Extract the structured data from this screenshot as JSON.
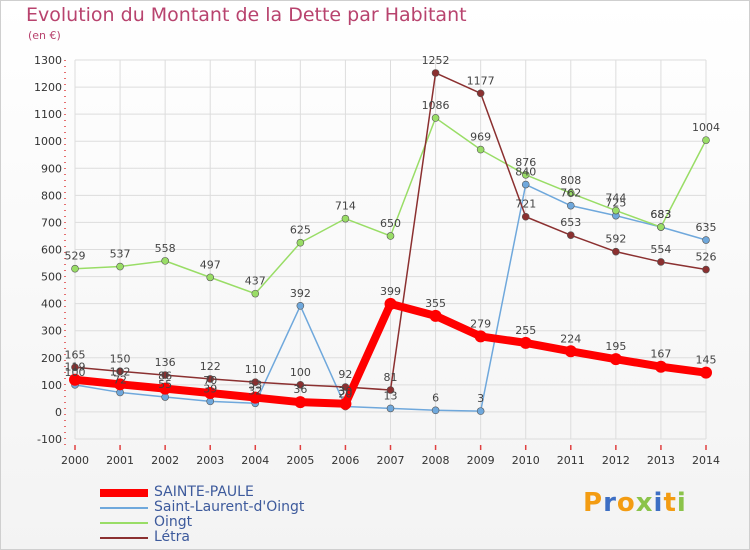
{
  "header": {
    "title": "Evolution du Montant de la Dette par Habitant",
    "subtitle": "(en €)"
  },
  "logo": {
    "text": "Proxiti"
  },
  "chart_data": {
    "type": "line",
    "title": "Evolution du Montant de la Dette par Habitant",
    "ylabel": "(en €)",
    "xlabel": "",
    "x": [
      "2000",
      "2001",
      "2002",
      "2003",
      "2004",
      "2005",
      "2006",
      "2007",
      "2008",
      "2009",
      "2010",
      "2011",
      "2012",
      "2013",
      "2014"
    ],
    "ylim": [
      -100,
      1300
    ],
    "yticks": [
      -100,
      0,
      100,
      200,
      300,
      400,
      500,
      600,
      700,
      800,
      900,
      1000,
      1100,
      1200,
      1300
    ],
    "grid": true,
    "legend": "bottom-left",
    "series": [
      {
        "name": "SAINTE-PAULE",
        "color": "#ff0000",
        "values": [
          119,
          102,
          86,
          70,
          53,
          36,
          30,
          399,
          355,
          279,
          255,
          224,
          195,
          167,
          145
        ],
        "labels": [
          "119",
          "102",
          "86",
          "70",
          "53",
          "36",
          "30",
          "399",
          "355",
          "279",
          "255",
          "224",
          "195",
          "167",
          "145"
        ]
      },
      {
        "name": "Saint-Laurent-d'Oingt",
        "color": "#6fa8dc",
        "values": [
          100,
          72,
          55,
          39,
          32,
          392,
          20,
          13,
          6,
          3,
          840,
          762,
          725,
          683,
          635
        ],
        "labels": [
          "100",
          "72",
          "55",
          "39",
          "32",
          "392",
          "20",
          "13",
          "6",
          "3",
          "840",
          "762",
          "725",
          "683",
          "635"
        ]
      },
      {
        "name": "Oingt",
        "color": "#99dd66",
        "values": [
          529,
          537,
          558,
          497,
          437,
          625,
          714,
          650,
          1086,
          969,
          876,
          808,
          744,
          683,
          1004
        ],
        "labels": [
          "529",
          "537",
          "558",
          "497",
          "437",
          "625",
          "714",
          "650",
          "1086",
          "969",
          "876",
          "808",
          "744",
          "683",
          "1004"
        ]
      },
      {
        "name": "Létra",
        "color": "#8b3030",
        "values": [
          165,
          150,
          136,
          122,
          110,
          100,
          92,
          81,
          1252,
          1177,
          721,
          653,
          592,
          554,
          526
        ],
        "labels": [
          "165",
          "150",
          "136",
          "122",
          "110",
          "100",
          "92",
          "81",
          "1252",
          "1177",
          "721",
          "653",
          "592",
          "554",
          "526"
        ]
      }
    ]
  }
}
